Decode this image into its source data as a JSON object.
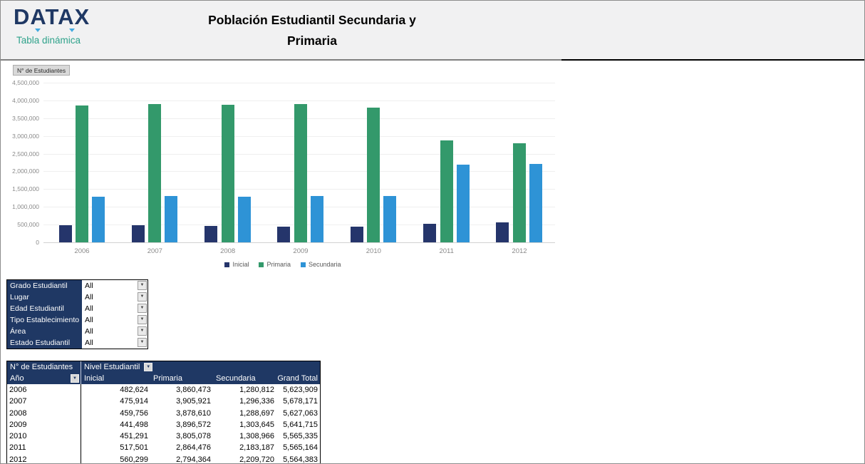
{
  "header": {
    "logo_text": "DATAX",
    "logo_subtitle": "Tabla dinámica",
    "title_line1": "Población Estudiantil Secundaria y",
    "title_line2": "Primaria"
  },
  "icons": {
    "dropdown_arrow": "▼"
  },
  "colors": {
    "navy_header": "#1F3864",
    "teal_accent": "#2FA28B",
    "bar_inicial": "#25356B",
    "bar_primaria": "#33996B",
    "bar_secundaria": "#2E93D6",
    "header_band_bg": "#F1F1F2"
  },
  "chart": {
    "field_button": "N° de Estudiantes"
  },
  "chart_data": {
    "type": "bar",
    "title": "",
    "xlabel": "",
    "ylabel": "",
    "categories": [
      "2006",
      "2007",
      "2008",
      "2009",
      "2010",
      "2011",
      "2012"
    ],
    "series": [
      {
        "name": "Inicial",
        "color": "#25356B",
        "values": [
          482624,
          475914,
          459756,
          441498,
          451291,
          517501,
          560299
        ]
      },
      {
        "name": "Primaria",
        "color": "#33996B",
        "values": [
          3860473,
          3905921,
          3878610,
          3896572,
          3805078,
          2864476,
          2794364
        ]
      },
      {
        "name": "Secundaria",
        "color": "#2E93D6",
        "values": [
          1280812,
          1296336,
          1288697,
          1303645,
          1308966,
          2183187,
          2209720
        ]
      }
    ],
    "ylim": [
      0,
      4500000
    ],
    "ytick_step": 500000,
    "grid": true,
    "legend_position": "bottom"
  },
  "filters": {
    "items": [
      {
        "label": "Grado Estudiantil",
        "value": "All"
      },
      {
        "label": "Lugar",
        "value": "All"
      },
      {
        "label": "Edad Estudiantil",
        "value": "All"
      },
      {
        "label": "Tipo Establecimiento",
        "value": "All"
      },
      {
        "label": "Área",
        "value": "All"
      },
      {
        "label": "Estado Estudiantil",
        "value": "All"
      }
    ]
  },
  "pivot": {
    "corner_label": "N° de Estudiantes",
    "column_field": "Nivel Estudiantil",
    "row_field": "Año",
    "columns": [
      "Inicial",
      "Primaria",
      "Secundaria",
      "Grand Total"
    ],
    "rows": [
      {
        "year": "2006",
        "values": [
          "482,624",
          "3,860,473",
          "1,280,812",
          "5,623,909"
        ]
      },
      {
        "year": "2007",
        "values": [
          "475,914",
          "3,905,921",
          "1,296,336",
          "5,678,171"
        ]
      },
      {
        "year": "2008",
        "values": [
          "459,756",
          "3,878,610",
          "1,288,697",
          "5,627,063"
        ]
      },
      {
        "year": "2009",
        "values": [
          "441,498",
          "3,896,572",
          "1,303,645",
          "5,641,715"
        ]
      },
      {
        "year": "2010",
        "values": [
          "451,291",
          "3,805,078",
          "1,308,966",
          "5,565,335"
        ]
      },
      {
        "year": "2011",
        "values": [
          "517,501",
          "2,864,476",
          "2,183,187",
          "5,565,164"
        ]
      },
      {
        "year": "2012",
        "values": [
          "560,299",
          "2,794,364",
          "2,209,720",
          "5,564,383"
        ]
      }
    ]
  }
}
